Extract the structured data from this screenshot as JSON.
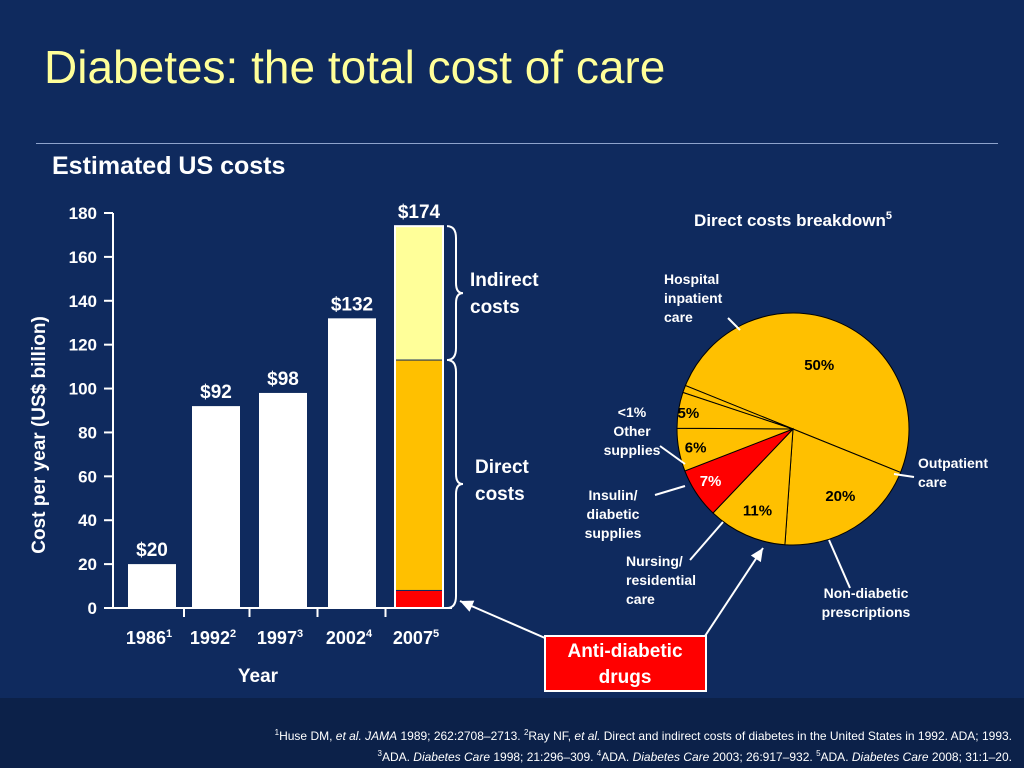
{
  "slide": {
    "title": "Diabetes: the total cost of care",
    "subtitle": "Estimated US costs",
    "colors": {
      "background": "#0f2a5e",
      "title": "#ffff99",
      "direct": "#ffc000",
      "indirect": "#ffff99",
      "drugs": "#ff0000",
      "pie": "#ffc000"
    }
  },
  "chart_data": [
    {
      "type": "bar",
      "subtype": "stacked",
      "ylabel": "Cost per year (US$ billion)",
      "xlabel": "Year",
      "ylim": [
        0,
        180
      ],
      "yticks": [
        0,
        20,
        40,
        60,
        80,
        100,
        120,
        140,
        160,
        180
      ],
      "categories": [
        {
          "year": "1986",
          "ref": "1"
        },
        {
          "year": "1992",
          "ref": "2"
        },
        {
          "year": "1997",
          "ref": "3"
        },
        {
          "year": "2002",
          "ref": "4"
        },
        {
          "year": "2007",
          "ref": "5"
        }
      ],
      "totals": [
        20,
        92,
        98,
        132,
        174
      ],
      "total_labels": [
        "$20",
        "$92",
        "$98",
        "$132",
        "$174"
      ],
      "stack_2007": [
        {
          "name": "Anti-diabetic drugs",
          "value": 8,
          "color": "#ff0000"
        },
        {
          "name": "Direct costs",
          "value": 105,
          "color": "#ffc000"
        },
        {
          "name": "Indirect costs",
          "value": 61,
          "color": "#ffff99"
        }
      ],
      "brace_labels": {
        "indirect": [
          "Indirect",
          "costs"
        ],
        "direct": [
          "Direct",
          "costs"
        ]
      }
    },
    {
      "type": "pie",
      "title": "Direct costs breakdown",
      "title_ref": "5",
      "slices": [
        {
          "name": "Hospital inpatient care",
          "value": 50,
          "label": "50%",
          "color": "#ffc000"
        },
        {
          "name": "Outpatient care",
          "value": 20,
          "label": "20%",
          "color": "#ffc000"
        },
        {
          "name": "Non-diabetic prescriptions",
          "value": 11,
          "label": "11%",
          "color": "#ffc000"
        },
        {
          "name": "Anti-diabetic drugs",
          "value": 7,
          "label": "7%",
          "color": "#ff0000"
        },
        {
          "name": "Nursing/residential care",
          "value": 6,
          "label": "6%",
          "color": "#ffc000"
        },
        {
          "name": "Insulin/diabetic supplies",
          "value": 5,
          "label": "5%",
          "color": "#ffc000"
        },
        {
          "name": "Other supplies",
          "value": 1,
          "label": "<1%",
          "color": "#ffc000"
        }
      ],
      "callouts": {
        "hospital": [
          "Hospital",
          "inpatient",
          "care"
        ],
        "outpatient": [
          "Outpatient",
          "care"
        ],
        "nondiabetic": [
          "Non-diabetic",
          "prescriptions"
        ],
        "nursing": [
          "Nursing/",
          "residential",
          "care"
        ],
        "insulin": [
          "Insulin/",
          "diabetic",
          "supplies"
        ],
        "other": [
          "<1%",
          "Other",
          "supplies"
        ]
      },
      "anti_diabetic_box": [
        "Anti-diabetic",
        "drugs"
      ]
    }
  ],
  "references": {
    "line1": [
      {
        "t": "1",
        "s": "sup"
      },
      {
        "t": "Huse DM, "
      },
      {
        "t": "et al. JAMA",
        "s": "i"
      },
      {
        "t": " 1989; 262:2708–2713. "
      },
      {
        "t": "2",
        "s": "sup"
      },
      {
        "t": "Ray NF, "
      },
      {
        "t": "et al.",
        "s": "i"
      },
      {
        "t": " Direct and indirect costs of diabetes in the United States in 1992. ADA; 1993."
      }
    ],
    "line2": [
      {
        "t": "3",
        "s": "sup"
      },
      {
        "t": "ADA. "
      },
      {
        "t": "Diabetes Care",
        "s": "i"
      },
      {
        "t": " 1998; 21:296–309. "
      },
      {
        "t": "4",
        "s": "sup"
      },
      {
        "t": "ADA. "
      },
      {
        "t": "Diabetes Care",
        "s": "i"
      },
      {
        "t": " 2003; 26:917–932. "
      },
      {
        "t": "5",
        "s": "sup"
      },
      {
        "t": "ADA. "
      },
      {
        "t": "Diabetes Care",
        "s": "i"
      },
      {
        "t": " 2008; 31:1–20."
      }
    ]
  }
}
